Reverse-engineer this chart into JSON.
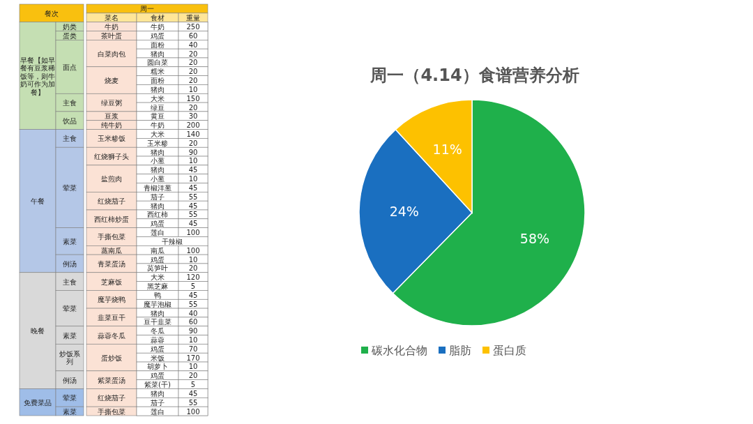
{
  "chart_data": [
    {
      "type": "other",
      "annotations": [
        "餐次",
        "周一",
        "菜名",
        "食材",
        "重量",
        "早餐【如早餐有豆浆稀饭等，则牛奶可作为加餐】",
        "奶类",
        "牛奶",
        "牛奶",
        "250",
        "蛋类",
        "茶叶蛋",
        "鸡蛋",
        "60",
        "面点",
        "白菜肉包",
        "面粉",
        "40",
        "猪肉",
        "20",
        "圆白菜",
        "20",
        "烧麦",
        "糯米",
        "20",
        "面粉",
        "20",
        "猪肉",
        "10",
        "主食",
        "绿豆粥",
        "大米",
        "150",
        "绿豆",
        "20",
        "饮品",
        "豆浆",
        "黄豆",
        "30",
        "纯牛奶",
        "牛奶",
        "200",
        "午餐",
        "主食",
        "玉米糁饭",
        "大米",
        "140",
        "玉米糁",
        "20",
        "荤菜",
        "红烧狮子头",
        "猪肉",
        "90",
        "小葱",
        "10",
        "盐煎肉",
        "猪肉",
        "45",
        "小葱",
        "10",
        "青椒洋葱",
        "45",
        "红烧茄子",
        "茄子",
        "55",
        "猪肉",
        "45",
        "西红柿炒蛋",
        "西红柿",
        "55",
        "鸡蛋",
        "45",
        "素菜",
        "手撕包菜",
        "莲白",
        "100",
        "干辣椒",
        "蒸南瓜",
        "南瓜",
        "100",
        "例汤",
        "青菜蛋汤",
        "鸡蛋",
        "10",
        "莴笋叶",
        "20",
        "晚餐",
        "主食",
        "芝麻饭",
        "大米",
        "120",
        "黑芝麻",
        "5",
        "荤菜",
        "魔芋烧鸭",
        "鸭",
        "45",
        "魔芋泡椒",
        "55",
        "韭菜豆干",
        "猪肉",
        "40",
        "豆干韭菜",
        "60",
        "素菜",
        "蒜蓉冬瓜",
        "冬瓜",
        "90",
        "蒜蓉",
        "10",
        "炒饭系列",
        "蛋炒饭",
        "鸡蛋",
        "70",
        "米饭",
        "170",
        "胡萝卜",
        "10",
        "例汤",
        "紫菜蛋汤",
        "鸡蛋",
        "20",
        "紫菜(干)",
        "5",
        "免费菜品",
        "荤菜",
        "红烧茄子",
        "猪肉",
        "45",
        "茄子",
        "55",
        "素菜",
        "手撕包菜",
        "莲白",
        "100"
      ]
    },
    {
      "type": "pie",
      "title": "周一（4.14）食谱营养分析",
      "categories": [
        "碳水化合物",
        "脂肪",
        "蛋白质"
      ],
      "values": [
        58,
        24,
        11
      ],
      "colors": [
        "#1fb04b",
        "#1a6fc0",
        "#fdc100"
      ],
      "value_labels": [
        "58%",
        "24%",
        "11%"
      ],
      "legend": "bottom"
    }
  ]
}
